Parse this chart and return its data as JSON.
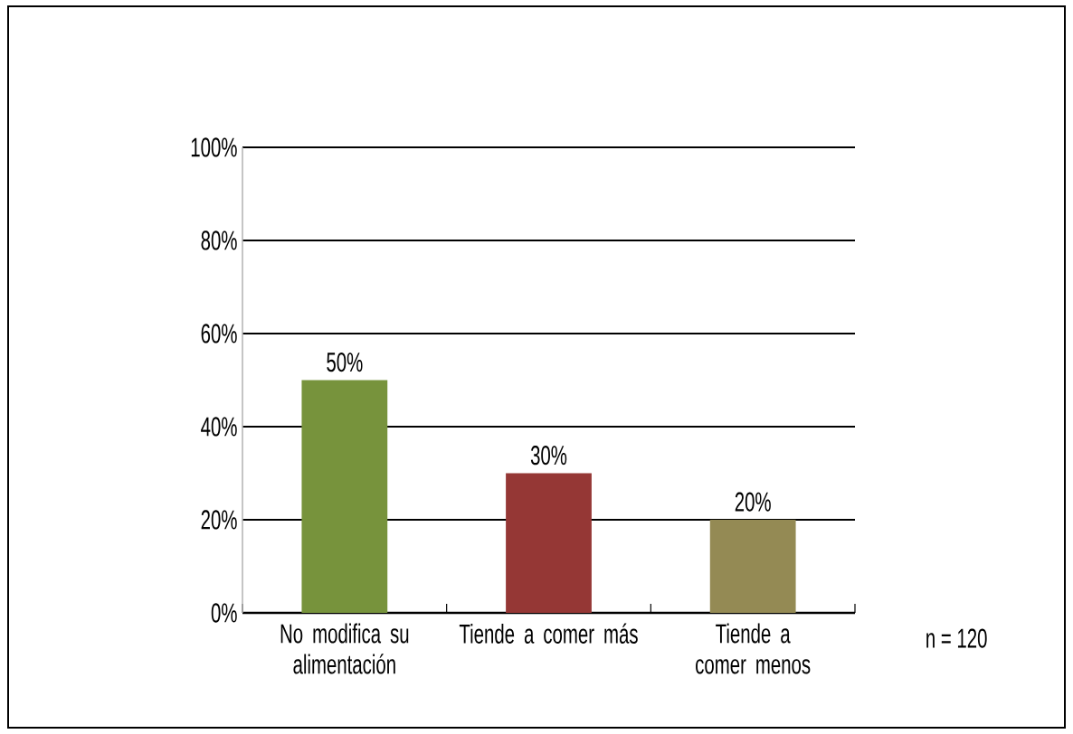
{
  "chart_data": {
    "type": "bar",
    "categories": [
      "No modifica su alimentación",
      "Tiende a comer más",
      "Tiende a comer menos"
    ],
    "values": [
      50,
      30,
      20
    ],
    "colors": [
      "#77933c",
      "#953735",
      "#948a54"
    ],
    "value_labels": [
      "50%",
      "30%",
      "20%"
    ],
    "ylim": [
      0,
      100
    ],
    "yticks": [
      {
        "value": 0,
        "label": "0%"
      },
      {
        "value": 20,
        "label": "20%"
      },
      {
        "value": 40,
        "label": "40%"
      },
      {
        "value": 60,
        "label": "60%"
      },
      {
        "value": 80,
        "label": "80%"
      },
      {
        "value": 100,
        "label": "100%"
      }
    ],
    "grid": "y",
    "annotations": [
      "n = 120"
    ]
  }
}
